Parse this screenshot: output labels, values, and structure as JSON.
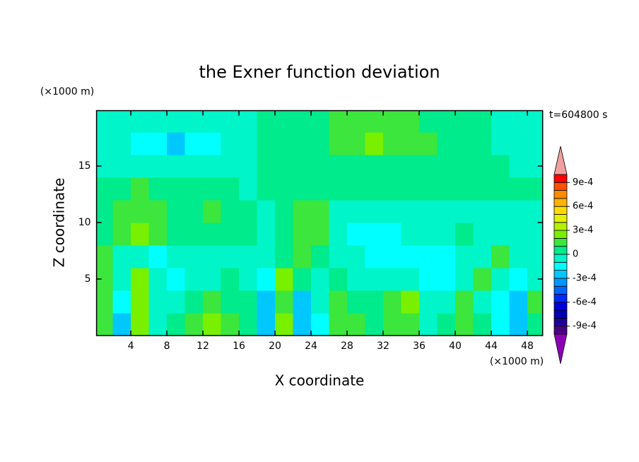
{
  "chart_data": {
    "type": "contour",
    "title": "the Exner function deviation",
    "x_label": "X coordinate",
    "y_label": "Z coordinate",
    "x_unit": "(×1000 m)",
    "y_unit": "(×1000 m)",
    "time_label": "t=604800 s",
    "xlim": [
      0.2,
      49.7
    ],
    "ylim": [
      0,
      19.9
    ],
    "xticks": [
      4,
      8,
      12,
      16,
      20,
      24,
      28,
      32,
      36,
      40,
      44,
      48
    ],
    "yticks": [
      5,
      10,
      15
    ],
    "x": [
      1,
      3,
      5,
      7,
      9,
      11,
      13,
      15,
      17,
      19,
      21,
      23,
      25,
      27,
      29,
      31,
      33,
      35,
      37,
      39,
      41,
      43,
      45,
      47,
      49
    ],
    "y": [
      1,
      3,
      5,
      7,
      9,
      11,
      13,
      15,
      17,
      19
    ],
    "z": [
      [
        0.00015,
        -0.00025,
        0.00025,
        -5e-05,
        5e-05,
        0.00015,
        0.00025,
        0.00015,
        5e-05,
        -0.00025,
        0.00025,
        -0.00025,
        -0.00015,
        0.00015,
        0.00015,
        5e-05,
        0.00015,
        0.00015,
        -5e-05,
        5e-05,
        0.00015,
        5e-05,
        -0.00015,
        -0.00025,
        5e-05
      ],
      [
        0.00015,
        -0.00015,
        0.00025,
        -5e-05,
        -5e-05,
        5e-05,
        0.00015,
        5e-05,
        5e-05,
        -0.00025,
        0.00015,
        -0.00025,
        -5e-05,
        0.00015,
        5e-05,
        5e-05,
        0.00015,
        0.00025,
        -5e-05,
        -5e-05,
        0.00015,
        -5e-05,
        -0.00015,
        -0.00025,
        0.00015
      ],
      [
        0.00015,
        -5e-05,
        0.00025,
        -5e-05,
        -0.00015,
        -5e-05,
        -5e-05,
        5e-05,
        -5e-05,
        -0.00015,
        0.00025,
        5e-05,
        -5e-05,
        5e-05,
        -5e-05,
        -5e-05,
        -5e-05,
        -5e-05,
        -0.00015,
        -0.00015,
        -5e-05,
        0.00015,
        -5e-05,
        -0.00015,
        -5e-05
      ],
      [
        0.00015,
        -5e-05,
        -5e-05,
        -0.00015,
        -5e-05,
        -5e-05,
        -5e-05,
        -5e-05,
        -5e-05,
        -5e-05,
        5e-05,
        0.00015,
        5e-05,
        -5e-05,
        -5e-05,
        -0.00015,
        -0.00015,
        -0.00015,
        -0.00015,
        -0.00015,
        -5e-05,
        -5e-05,
        0.00015,
        -5e-05,
        -5e-05
      ],
      [
        5e-05,
        0.00015,
        0.00025,
        0.00015,
        5e-05,
        5e-05,
        5e-05,
        5e-05,
        5e-05,
        -5e-05,
        5e-05,
        0.00015,
        0.00015,
        -5e-05,
        -0.00015,
        -0.00015,
        -0.00015,
        -5e-05,
        -5e-05,
        -5e-05,
        5e-05,
        -5e-05,
        -5e-05,
        -5e-05,
        -5e-05
      ],
      [
        5e-05,
        0.00015,
        0.00015,
        0.00015,
        5e-05,
        5e-05,
        0.00015,
        5e-05,
        5e-05,
        -5e-05,
        5e-05,
        0.00015,
        0.00015,
        -5e-05,
        -5e-05,
        -5e-05,
        -5e-05,
        -5e-05,
        -5e-05,
        -5e-05,
        -5e-05,
        -5e-05,
        -5e-05,
        -5e-05,
        -5e-05
      ],
      [
        5e-05,
        5e-05,
        0.00015,
        5e-05,
        5e-05,
        5e-05,
        5e-05,
        5e-05,
        -5e-05,
        5e-05,
        5e-05,
        5e-05,
        5e-05,
        5e-05,
        5e-05,
        5e-05,
        5e-05,
        5e-05,
        5e-05,
        5e-05,
        5e-05,
        5e-05,
        5e-05,
        5e-05,
        5e-05
      ],
      [
        -5e-05,
        -5e-05,
        -5e-05,
        -5e-05,
        -5e-05,
        -5e-05,
        -5e-05,
        -5e-05,
        -5e-05,
        5e-05,
        5e-05,
        5e-05,
        5e-05,
        5e-05,
        5e-05,
        5e-05,
        5e-05,
        5e-05,
        5e-05,
        5e-05,
        5e-05,
        5e-05,
        5e-05,
        -5e-05,
        -5e-05
      ],
      [
        -5e-05,
        -5e-05,
        -0.00015,
        -0.00015,
        -0.00025,
        -0.00015,
        -0.00015,
        -5e-05,
        -5e-05,
        5e-05,
        5e-05,
        5e-05,
        5e-05,
        0.00015,
        0.00015,
        0.00025,
        0.00015,
        0.00015,
        0.00015,
        5e-05,
        5e-05,
        5e-05,
        -5e-05,
        -5e-05,
        -5e-05
      ],
      [
        -5e-05,
        -5e-05,
        -5e-05,
        -5e-05,
        -5e-05,
        -5e-05,
        -5e-05,
        -5e-05,
        -5e-05,
        5e-05,
        5e-05,
        5e-05,
        5e-05,
        0.00015,
        0.00015,
        0.00015,
        0.00015,
        0.00015,
        5e-05,
        5e-05,
        5e-05,
        5e-05,
        -5e-05,
        -5e-05,
        -5e-05
      ]
    ],
    "colorbar": {
      "levels": [
        -0.001,
        -0.0009,
        -0.0008,
        -0.0007,
        -0.0006,
        -0.0005,
        -0.0004,
        -0.0003,
        -0.0002,
        -0.0001,
        0,
        0.0001,
        0.0002,
        0.0003,
        0.0004,
        0.0005,
        0.0006,
        0.0007,
        0.0008,
        0.0009,
        0.001
      ],
      "colors": [
        "#4b0082",
        "#1e0096",
        "#0000b4",
        "#0000dc",
        "#0028ff",
        "#0064ff",
        "#0096ff",
        "#00c8ff",
        "#00ffff",
        "#00f5c8",
        "#00eb8c",
        "#3ce63c",
        "#78f000",
        "#b4f000",
        "#e6f000",
        "#ffdc00",
        "#ffb400",
        "#ff8c00",
        "#ff5000",
        "#ff0000"
      ],
      "over_color": "#f0a0a0",
      "under_color": "#8c00b4",
      "ticks": [
        {
          "value": 0.0009,
          "label": "9e-4"
        },
        {
          "value": 0.0006,
          "label": "6e-4"
        },
        {
          "value": 0.0003,
          "label": "3e-4"
        },
        0,
        {
          "value": -0.0003,
          "label": "-3e-4"
        },
        {
          "value": -0.0006,
          "label": "-6e-4"
        },
        {
          "value": -0.0009,
          "label": "-9e-4"
        }
      ]
    }
  }
}
